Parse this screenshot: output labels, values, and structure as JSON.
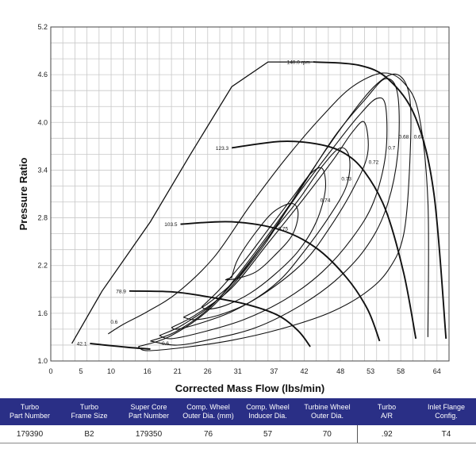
{
  "chart_data": {
    "type": "line",
    "title": "",
    "xlabel": "Corrected Mass Flow (lbs/min)",
    "ylabel": "Pressure Ratio",
    "xlim": [
      0,
      66
    ],
    "ylim": [
      1.0,
      5.2
    ],
    "xticks": [
      "0",
      "5",
      "10",
      "16",
      "21",
      "26",
      "31",
      "37",
      "42",
      "48",
      "53",
      "58",
      "64"
    ],
    "yticks": [
      "1.0",
      "1.6",
      "2.2",
      "2.8",
      "3.4",
      "4.0",
      "4.6",
      "5.2"
    ],
    "grid": true,
    "surge_line": {
      "x": [
        3.5,
        8.5,
        16.5,
        23,
        30,
        36,
        43.5
      ],
      "y": [
        1.22,
        1.88,
        2.75,
        3.58,
        4.45,
        4.76,
        4.76
      ]
    },
    "speed_lines": [
      {
        "label": "140.0 rpm",
        "x": [
          43.5,
          51,
          56,
          60.5,
          63.5,
          65.5
        ],
        "y": [
          4.76,
          4.72,
          4.54,
          4.05,
          3.1,
          1.28
        ]
      },
      {
        "label": "123.3",
        "x": [
          30,
          38,
          44,
          48.5,
          52,
          55.5,
          58.5,
          60.5
        ],
        "y": [
          3.68,
          3.76,
          3.73,
          3.62,
          3.38,
          2.9,
          2.1,
          1.28
        ]
      },
      {
        "label": "103.5",
        "x": [
          21.5,
          30,
          38,
          44,
          49,
          52.5,
          54.5
        ],
        "y": [
          2.72,
          2.75,
          2.65,
          2.42,
          2.05,
          1.65,
          1.25
        ]
      },
      {
        "label": "78.9",
        "x": [
          13,
          20,
          25,
          32,
          37.5,
          41,
          43
        ],
        "y": [
          1.88,
          1.87,
          1.82,
          1.72,
          1.58,
          1.38,
          1.18
        ]
      },
      {
        "label": "42.1",
        "x": [
          6.5,
          9,
          13,
          16.5
        ],
        "y": [
          1.22,
          1.2,
          1.17,
          1.15
        ]
      }
    ],
    "efficiency_islands": [
      {
        "label": "0.75",
        "x": [
          30,
          31,
          34,
          37,
          40,
          41,
          40,
          37,
          34,
          31,
          29,
          30
        ],
        "y": [
          2.05,
          2.28,
          2.62,
          2.88,
          2.98,
          2.85,
          2.58,
          2.32,
          2.12,
          2.04,
          2.02,
          2.05
        ]
      },
      {
        "label": "0.74",
        "x": [
          25,
          28,
          32,
          36,
          40,
          43,
          45,
          45.5,
          44,
          41,
          37,
          33,
          29,
          26,
          25
        ],
        "y": [
          1.68,
          1.9,
          2.25,
          2.65,
          3.05,
          3.35,
          3.42,
          3.15,
          2.75,
          2.38,
          2.08,
          1.85,
          1.7,
          1.65,
          1.68
        ]
      },
      {
        "label": "0.73",
        "x": [
          22,
          26,
          31,
          36,
          41,
          45,
          48,
          49.5,
          49,
          46,
          42,
          38,
          33,
          28,
          24,
          22
        ],
        "y": [
          1.55,
          1.72,
          2.05,
          2.55,
          3.02,
          3.45,
          3.68,
          3.55,
          3.2,
          2.8,
          2.38,
          2.02,
          1.74,
          1.58,
          1.52,
          1.55
        ]
      },
      {
        "label": "0.72",
        "x": [
          20,
          24,
          30,
          36,
          42,
          47,
          50,
          52,
          52.5,
          50,
          46,
          42,
          36,
          30,
          25,
          21,
          20
        ],
        "y": [
          1.42,
          1.58,
          1.92,
          2.48,
          3.05,
          3.55,
          3.88,
          4.0,
          3.6,
          3.15,
          2.65,
          2.25,
          1.88,
          1.62,
          1.48,
          1.4,
          1.42
        ]
      },
      {
        "label": "0.7",
        "x": [
          18,
          22,
          28,
          35,
          41,
          47,
          51,
          54,
          55.5,
          55.5,
          53.5,
          50,
          45,
          39,
          32,
          25,
          20,
          18
        ],
        "y": [
          1.32,
          1.46,
          1.8,
          2.45,
          3.1,
          3.7,
          4.08,
          4.3,
          4.2,
          3.6,
          3.0,
          2.55,
          2.12,
          1.78,
          1.52,
          1.36,
          1.28,
          1.32
        ]
      },
      {
        "label": "0.68",
        "x": [
          16.5,
          21,
          27,
          34,
          41,
          47,
          52,
          55.5,
          57.5,
          57.5,
          55.5,
          52,
          47,
          41,
          34,
          27,
          21,
          16.5
        ],
        "y": [
          1.25,
          1.38,
          1.72,
          2.38,
          3.12,
          3.82,
          4.28,
          4.55,
          4.35,
          3.6,
          2.9,
          2.4,
          2.0,
          1.68,
          1.42,
          1.28,
          1.2,
          1.25
        ]
      },
      {
        "label": "0.65",
        "x": [
          14.5,
          20,
          27,
          35,
          42,
          49,
          54,
          57.5,
          59.5,
          59.5,
          58.5,
          56,
          52,
          46,
          38,
          30,
          22,
          16,
          14.5
        ],
        "y": [
          1.18,
          1.32,
          1.7,
          2.42,
          3.25,
          4.02,
          4.48,
          4.6,
          4.3,
          3.5,
          2.6,
          2.15,
          1.85,
          1.6,
          1.4,
          1.26,
          1.17,
          1.13,
          1.18
        ]
      },
      {
        "label": "0.6",
        "x": [
          9.5,
          12,
          16,
          21,
          27,
          33,
          39,
          45,
          50,
          55,
          58.5,
          61,
          62.5,
          62.5
        ],
        "y": [
          1.34,
          1.46,
          1.62,
          1.86,
          2.3,
          2.95,
          3.55,
          4.08,
          4.45,
          4.62,
          4.5,
          4.1,
          3.0,
          1.3
        ]
      }
    ],
    "island_label_positions": [
      {
        "label": "0.75",
        "x": 38.5,
        "y": 2.64
      },
      {
        "label": "0.74",
        "x": 45.5,
        "y": 3.0
      },
      {
        "label": "0.73",
        "x": 49,
        "y": 3.27
      },
      {
        "label": "0.72",
        "x": 53.5,
        "y": 3.48
      },
      {
        "label": "0.7",
        "x": 56.5,
        "y": 3.66
      },
      {
        "label": "0.68",
        "x": 58.5,
        "y": 3.8
      },
      {
        "label": "0.65",
        "x": 61,
        "y": 3.8
      },
      {
        "label": "0.6",
        "x": 10.5,
        "y": 1.47
      },
      {
        "label": "0.6",
        "x": 19,
        "y": 1.2
      }
    ]
  },
  "table": {
    "headers": [
      "Turbo\nPart Number",
      "Turbo\nFrame Size",
      "Super Core\nPart Number",
      "Comp. Wheel\nOuter Dia. (mm)",
      "Comp. Wheel\nInducer Dia.",
      "Turbine Wheel\nOuter Dia.",
      "Turbo\nA/R",
      "Inlet Flange\nConfig."
    ],
    "row": [
      "179390",
      "B2",
      "179350",
      "76",
      "57",
      "70",
      ".92",
      "T4"
    ]
  },
  "colors": {
    "header_bg": "#2a2f86",
    "grid": "#c8c8c8",
    "line": "#111111"
  }
}
